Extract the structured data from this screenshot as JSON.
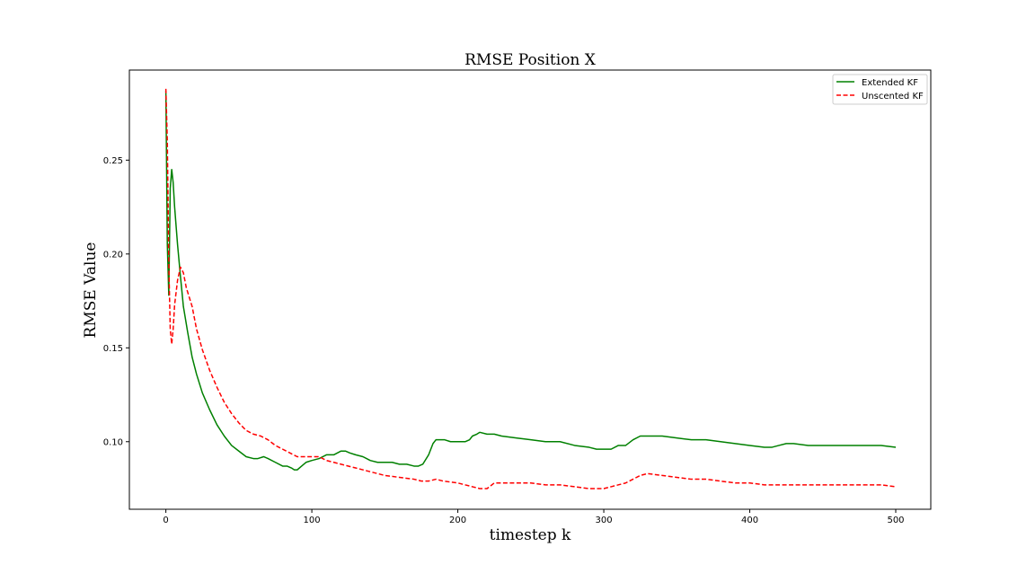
{
  "chart_data": {
    "type": "line",
    "title": "RMSE Position X",
    "xlabel": "timestep k",
    "ylabel": "RMSE Value",
    "xlim": [
      -25,
      524
    ],
    "ylim": [
      0.064,
      0.298
    ],
    "xticks": [
      0,
      100,
      200,
      300,
      400,
      500
    ],
    "xtick_labels": [
      "0",
      "100",
      "200",
      "300",
      "400",
      "500"
    ],
    "yticks": [
      0.1,
      0.15,
      0.2,
      0.25
    ],
    "ytick_labels": [
      "0.10",
      "0.15",
      "0.20",
      "0.25"
    ],
    "grid": false,
    "legend": {
      "placement": "top-right"
    },
    "series": [
      {
        "name": "Extended KF",
        "color": "#008000",
        "style": "solid",
        "x": [
          0,
          1,
          2,
          3,
          4,
          5,
          6,
          8,
          10,
          12,
          15,
          18,
          21,
          25,
          30,
          35,
          40,
          45,
          50,
          55,
          60,
          63,
          67,
          70,
          75,
          80,
          83,
          86,
          88,
          90,
          93,
          96,
          100,
          105,
          110,
          115,
          120,
          123,
          126,
          130,
          135,
          140,
          145,
          150,
          155,
          160,
          165,
          170,
          173,
          176,
          180,
          183,
          185,
          188,
          191,
          195,
          200,
          205,
          208,
          210,
          213,
          215,
          220,
          225,
          230,
          240,
          250,
          260,
          265,
          270,
          280,
          290,
          295,
          300,
          305,
          310,
          315,
          320,
          325,
          330,
          340,
          350,
          360,
          370,
          380,
          390,
          400,
          410,
          415,
          420,
          425,
          430,
          440,
          450,
          460,
          470,
          480,
          490,
          500
        ],
        "values": [
          0.287,
          0.205,
          0.178,
          0.235,
          0.245,
          0.238,
          0.225,
          0.205,
          0.188,
          0.172,
          0.158,
          0.145,
          0.136,
          0.126,
          0.117,
          0.109,
          0.103,
          0.098,
          0.095,
          0.092,
          0.091,
          0.091,
          0.092,
          0.091,
          0.089,
          0.087,
          0.087,
          0.086,
          0.085,
          0.085,
          0.087,
          0.089,
          0.09,
          0.091,
          0.093,
          0.093,
          0.095,
          0.095,
          0.094,
          0.093,
          0.092,
          0.09,
          0.089,
          0.089,
          0.089,
          0.088,
          0.088,
          0.087,
          0.087,
          0.088,
          0.093,
          0.099,
          0.101,
          0.101,
          0.101,
          0.1,
          0.1,
          0.1,
          0.101,
          0.103,
          0.104,
          0.105,
          0.104,
          0.104,
          0.103,
          0.102,
          0.101,
          0.1,
          0.1,
          0.1,
          0.098,
          0.097,
          0.096,
          0.096,
          0.096,
          0.098,
          0.098,
          0.101,
          0.103,
          0.103,
          0.103,
          0.102,
          0.101,
          0.101,
          0.1,
          0.099,
          0.098,
          0.097,
          0.097,
          0.098,
          0.099,
          0.099,
          0.098,
          0.098,
          0.098,
          0.098,
          0.098,
          0.098,
          0.097
        ]
      },
      {
        "name": "Unscented KF",
        "color": "#ff0000",
        "style": "dashed",
        "x": [
          0,
          1,
          2,
          3,
          4,
          5,
          6,
          8,
          10,
          12,
          14,
          16,
          18,
          21,
          25,
          30,
          35,
          40,
          45,
          50,
          55,
          60,
          65,
          70,
          75,
          80,
          85,
          90,
          95,
          100,
          105,
          110,
          115,
          120,
          130,
          140,
          150,
          160,
          170,
          175,
          180,
          185,
          190,
          200,
          210,
          215,
          220,
          225,
          230,
          240,
          250,
          260,
          270,
          280,
          290,
          295,
          300,
          305,
          310,
          315,
          320,
          325,
          330,
          340,
          350,
          360,
          370,
          380,
          390,
          400,
          410,
          415,
          420,
          425,
          430,
          440,
          450,
          460,
          470,
          480,
          490,
          500
        ],
        "values": [
          0.288,
          0.26,
          0.195,
          0.16,
          0.152,
          0.16,
          0.173,
          0.186,
          0.193,
          0.19,
          0.182,
          0.177,
          0.172,
          0.16,
          0.149,
          0.138,
          0.129,
          0.121,
          0.115,
          0.11,
          0.106,
          0.104,
          0.103,
          0.101,
          0.098,
          0.096,
          0.094,
          0.092,
          0.092,
          0.092,
          0.092,
          0.09,
          0.089,
          0.088,
          0.086,
          0.084,
          0.082,
          0.081,
          0.08,
          0.079,
          0.079,
          0.08,
          0.079,
          0.078,
          0.076,
          0.075,
          0.075,
          0.078,
          0.078,
          0.078,
          0.078,
          0.077,
          0.077,
          0.076,
          0.075,
          0.075,
          0.075,
          0.076,
          0.077,
          0.078,
          0.08,
          0.082,
          0.083,
          0.082,
          0.081,
          0.08,
          0.08,
          0.079,
          0.078,
          0.078,
          0.077,
          0.077,
          0.077,
          0.077,
          0.077,
          0.077,
          0.077,
          0.077,
          0.077,
          0.077,
          0.077,
          0.076
        ]
      }
    ]
  }
}
